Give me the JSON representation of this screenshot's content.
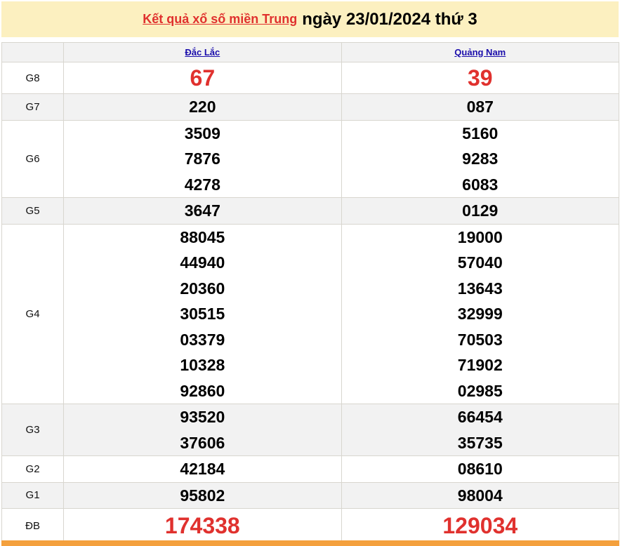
{
  "header": {
    "link_text": "Kết quả xổ số miền Trung",
    "date_text": "ngày 23/01/2024 thứ 3"
  },
  "provinces": [
    "Đắc Lắc",
    "Quảng Nam"
  ],
  "colors": {
    "accent_red": "#e0312e",
    "title_bg": "#fcf0c0",
    "footer_bar": "#f4a03d",
    "link": "#1a0dab"
  },
  "prizes": [
    {
      "label": "G8",
      "results": [
        [
          "67"
        ],
        [
          "39"
        ]
      ]
    },
    {
      "label": "G7",
      "results": [
        [
          "220"
        ],
        [
          "087"
        ]
      ]
    },
    {
      "label": "G6",
      "results": [
        [
          "3509",
          "7876",
          "4278"
        ],
        [
          "5160",
          "9283",
          "6083"
        ]
      ]
    },
    {
      "label": "G5",
      "results": [
        [
          "3647"
        ],
        [
          "0129"
        ]
      ]
    },
    {
      "label": "G4",
      "results": [
        [
          "88045",
          "44940",
          "20360",
          "30515",
          "03379",
          "10328",
          "92860"
        ],
        [
          "19000",
          "57040",
          "13643",
          "32999",
          "70503",
          "71902",
          "02985"
        ]
      ]
    },
    {
      "label": "G3",
      "results": [
        [
          "93520",
          "37606"
        ],
        [
          "66454",
          "35735"
        ]
      ]
    },
    {
      "label": "G2",
      "results": [
        [
          "42184"
        ],
        [
          "08610"
        ]
      ]
    },
    {
      "label": "G1",
      "results": [
        [
          "95802"
        ],
        [
          "98004"
        ]
      ]
    },
    {
      "label": "ĐB",
      "results": [
        [
          "174338"
        ],
        [
          "129034"
        ]
      ]
    }
  ]
}
